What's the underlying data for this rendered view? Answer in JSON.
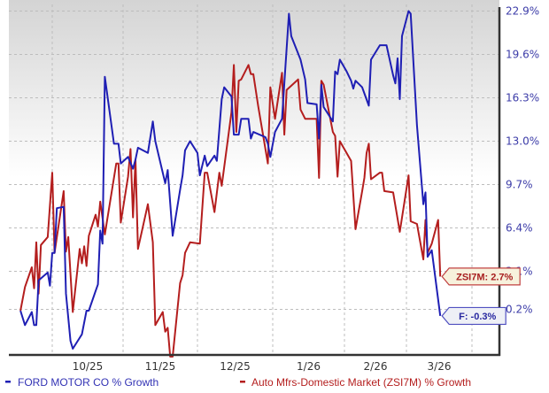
{
  "chart_data": {
    "type": "line",
    "title": "",
    "xlabel": "",
    "ylabel": "",
    "y_unit": "%",
    "grid": true,
    "legend_placement": "bottom",
    "x_tick_labels": [
      "10/25",
      "11/25",
      "12/25",
      "1/26",
      "2/26",
      "3/26"
    ],
    "y_tick_labels": [
      "22.9%",
      "19.6%",
      "16.3%",
      "13.0%",
      "9.7%",
      "6.4%",
      "3.1%",
      "0.2%"
    ],
    "y_ticks": [
      22.9,
      19.6,
      16.3,
      13.0,
      9.7,
      6.4,
      3.1,
      0.2
    ],
    "ylim": [
      -3.4,
      23.4
    ],
    "xlim": [
      "2025-09-15",
      "2026-03-31"
    ],
    "colors": {
      "ford": "#1f1fb4",
      "industry": "#b41e1e",
      "axis_text": "#3c3ca8"
    },
    "series": [
      {
        "name": "FORD MOTOR CO % Growth",
        "callout": "F: -0.3%",
        "points": [
          [
            "2025-09-17",
            0.1
          ],
          [
            "2025-09-19",
            -1.0
          ],
          [
            "2025-09-22",
            0.0
          ],
          [
            "2025-09-23",
            -1.0
          ],
          [
            "2025-09-24",
            -1.0
          ],
          [
            "2025-09-25",
            2.4
          ],
          [
            "2025-09-29",
            3.0
          ],
          [
            "2025-09-30",
            2.0
          ],
          [
            "2025-10-01",
            4.5
          ],
          [
            "2025-10-02",
            4.5
          ],
          [
            "2025-10-03",
            7.9
          ],
          [
            "2025-10-06",
            8.0
          ],
          [
            "2025-10-07",
            1.4
          ],
          [
            "2025-10-09",
            -2.2
          ],
          [
            "2025-10-10",
            -2.8
          ],
          [
            "2025-10-14",
            -1.7
          ],
          [
            "2025-10-16",
            0.1
          ],
          [
            "2025-10-17",
            0.1
          ],
          [
            "2025-10-20",
            1.6
          ],
          [
            "2025-10-21",
            2.1
          ],
          [
            "2025-10-22",
            6.2
          ],
          [
            "2025-10-23",
            5.2
          ],
          [
            "2025-10-24",
            17.9
          ],
          [
            "2025-10-28",
            12.8
          ],
          [
            "2025-10-30",
            12.8
          ],
          [
            "2025-10-31",
            11.3
          ],
          [
            "2025-11-03",
            11.8
          ],
          [
            "2025-11-05",
            10.9
          ],
          [
            "2025-11-06",
            11.6
          ],
          [
            "2025-11-07",
            12.5
          ],
          [
            "2025-11-11",
            12.1
          ],
          [
            "2025-11-13",
            14.5
          ],
          [
            "2025-11-14",
            13.0
          ],
          [
            "2025-11-18",
            9.8
          ],
          [
            "2025-11-19",
            10.8
          ],
          [
            "2025-11-21",
            5.8
          ],
          [
            "2025-11-24",
            9.3
          ],
          [
            "2025-11-25",
            10.4
          ],
          [
            "2025-11-26",
            12.3
          ],
          [
            "2025-11-28",
            13.0
          ],
          [
            "2025-12-01",
            12.1
          ],
          [
            "2025-12-02",
            10.4
          ],
          [
            "2025-12-04",
            11.9
          ],
          [
            "2025-12-05",
            11.1
          ],
          [
            "2025-12-08",
            11.9
          ],
          [
            "2025-12-09",
            11.5
          ],
          [
            "2025-12-11",
            16.2
          ],
          [
            "2025-12-12",
            17.1
          ],
          [
            "2025-12-15",
            16.4
          ],
          [
            "2025-12-16",
            13.5
          ],
          [
            "2025-12-18",
            13.5
          ],
          [
            "2025-12-19",
            14.7
          ],
          [
            "2025-12-22",
            14.7
          ],
          [
            "2025-12-23",
            13.2
          ],
          [
            "2025-12-24",
            13.7
          ],
          [
            "2025-12-29",
            13.3
          ],
          [
            "2025-12-30",
            12.8
          ],
          [
            "2025-12-31",
            11.8
          ],
          [
            "2026-01-02",
            13.7
          ],
          [
            "2026-01-05",
            14.7
          ],
          [
            "2026-01-06",
            17.4
          ],
          [
            "2026-01-08",
            22.7
          ],
          [
            "2026-01-09",
            21.0
          ],
          [
            "2026-01-13",
            19.2
          ],
          [
            "2026-01-15",
            17.7
          ],
          [
            "2026-01-16",
            15.9
          ],
          [
            "2026-01-20",
            15.8
          ],
          [
            "2026-01-21",
            13.2
          ],
          [
            "2026-01-22",
            17.3
          ],
          [
            "2026-01-23",
            15.6
          ],
          [
            "2026-01-27",
            14.5
          ],
          [
            "2026-01-28",
            18.3
          ],
          [
            "2026-01-29",
            18.1
          ],
          [
            "2026-01-30",
            19.2
          ],
          [
            "2026-02-02",
            18.3
          ],
          [
            "2026-02-04",
            17.6
          ],
          [
            "2026-02-05",
            17.0
          ],
          [
            "2026-02-06",
            17.6
          ],
          [
            "2026-02-09",
            17.1
          ],
          [
            "2026-02-12",
            15.7
          ],
          [
            "2026-02-13",
            19.2
          ],
          [
            "2026-02-17",
            20.3
          ],
          [
            "2026-02-20",
            20.3
          ],
          [
            "2026-02-23",
            18.0
          ],
          [
            "2026-02-24",
            17.4
          ],
          [
            "2026-02-25",
            19.3
          ],
          [
            "2026-02-26",
            16.2
          ],
          [
            "2026-02-27",
            21.0
          ],
          [
            "2026-03-02",
            22.9
          ],
          [
            "2026-03-03",
            22.7
          ],
          [
            "2026-03-06",
            14.2
          ],
          [
            "2026-03-09",
            8.2
          ],
          [
            "2026-03-10",
            9.1
          ],
          [
            "2026-03-11",
            4.2
          ],
          [
            "2026-03-13",
            4.7
          ],
          [
            "2026-03-17",
            -0.3
          ]
        ]
      },
      {
        "name": "Auto Mfrs-Domestic Market (ZSI7M) % Growth",
        "callout": "ZSI7M: 2.7%",
        "points": [
          [
            "2025-09-17",
            0.1
          ],
          [
            "2025-09-19",
            1.9
          ],
          [
            "2025-09-22",
            3.4
          ],
          [
            "2025-09-23",
            1.8
          ],
          [
            "2025-09-24",
            5.3
          ],
          [
            "2025-09-25",
            1.4
          ],
          [
            "2025-09-26",
            5.1
          ],
          [
            "2025-09-29",
            5.7
          ],
          [
            "2025-10-01",
            10.6
          ],
          [
            "2025-10-02",
            4.5
          ],
          [
            "2025-10-06",
            9.2
          ],
          [
            "2025-10-07",
            4.6
          ],
          [
            "2025-10-08",
            5.7
          ],
          [
            "2025-10-10",
            0.0
          ],
          [
            "2025-10-13",
            4.8
          ],
          [
            "2025-10-14",
            3.7
          ],
          [
            "2025-10-15",
            5.0
          ],
          [
            "2025-10-16",
            3.5
          ],
          [
            "2025-10-17",
            5.8
          ],
          [
            "2025-10-20",
            7.4
          ],
          [
            "2025-10-21",
            6.5
          ],
          [
            "2025-10-22",
            8.4
          ],
          [
            "2025-10-24",
            5.9
          ],
          [
            "2025-10-29",
            11.3
          ],
          [
            "2025-10-30",
            11.3
          ],
          [
            "2025-10-31",
            6.8
          ],
          [
            "2025-11-03",
            10.3
          ],
          [
            "2025-11-04",
            12.4
          ],
          [
            "2025-11-05",
            7.2
          ],
          [
            "2025-11-06",
            11.6
          ],
          [
            "2025-11-07",
            4.8
          ],
          [
            "2025-11-11",
            8.2
          ],
          [
            "2025-11-13",
            5.3
          ],
          [
            "2025-11-14",
            -1.0
          ],
          [
            "2025-11-17",
            0.0
          ],
          [
            "2025-11-18",
            -1.5
          ],
          [
            "2025-11-19",
            -1.2
          ],
          [
            "2025-11-20",
            -3.4
          ],
          [
            "2025-11-21",
            -3.4
          ],
          [
            "2025-11-24",
            2.2
          ],
          [
            "2025-11-25",
            2.8
          ],
          [
            "2025-11-26",
            4.5
          ],
          [
            "2025-11-28",
            5.3
          ],
          [
            "2025-12-02",
            5.2
          ],
          [
            "2025-12-04",
            10.6
          ],
          [
            "2025-12-05",
            10.6
          ],
          [
            "2025-12-08",
            7.6
          ],
          [
            "2025-12-10",
            10.6
          ],
          [
            "2025-12-11",
            9.6
          ],
          [
            "2025-12-15",
            15.2
          ],
          [
            "2025-12-16",
            18.8
          ],
          [
            "2025-12-17",
            13.7
          ],
          [
            "2025-12-18",
            17.6
          ],
          [
            "2025-12-19",
            17.7
          ],
          [
            "2025-12-22",
            18.8
          ],
          [
            "2025-12-23",
            18.1
          ],
          [
            "2025-12-24",
            18.1
          ],
          [
            "2025-12-26",
            15.7
          ],
          [
            "2025-12-30",
            11.3
          ],
          [
            "2025-12-31",
            17.1
          ],
          [
            "2026-01-02",
            14.7
          ],
          [
            "2026-01-05",
            18.2
          ],
          [
            "2026-01-06",
            13.5
          ],
          [
            "2026-01-07",
            16.9
          ],
          [
            "2026-01-12",
            17.7
          ],
          [
            "2026-01-13",
            15.4
          ],
          [
            "2026-01-15",
            14.7
          ],
          [
            "2026-01-20",
            14.7
          ],
          [
            "2026-01-21",
            10.2
          ],
          [
            "2026-01-22",
            17.6
          ],
          [
            "2026-01-23",
            17.3
          ],
          [
            "2026-01-27",
            13.7
          ],
          [
            "2026-01-28",
            13.4
          ],
          [
            "2026-01-29",
            10.3
          ],
          [
            "2026-01-30",
            13.0
          ],
          [
            "2026-02-04",
            11.5
          ],
          [
            "2026-02-06",
            6.3
          ],
          [
            "2026-02-09",
            9.2
          ],
          [
            "2026-02-10",
            10.2
          ],
          [
            "2026-02-11",
            12.1
          ],
          [
            "2026-02-12",
            12.8
          ],
          [
            "2026-02-13",
            10.1
          ],
          [
            "2026-02-17",
            10.6
          ],
          [
            "2026-02-18",
            10.6
          ],
          [
            "2026-02-19",
            9.2
          ],
          [
            "2026-02-23",
            9.1
          ],
          [
            "2026-02-26",
            6.1
          ],
          [
            "2026-03-02",
            10.4
          ],
          [
            "2026-03-03",
            6.9
          ],
          [
            "2026-03-06",
            6.7
          ],
          [
            "2026-03-09",
            4.0
          ],
          [
            "2026-03-10",
            7.0
          ],
          [
            "2026-03-11",
            4.5
          ],
          [
            "2026-03-13",
            5.2
          ],
          [
            "2026-03-16",
            7.0
          ],
          [
            "2026-03-17",
            2.7
          ]
        ]
      }
    ]
  }
}
